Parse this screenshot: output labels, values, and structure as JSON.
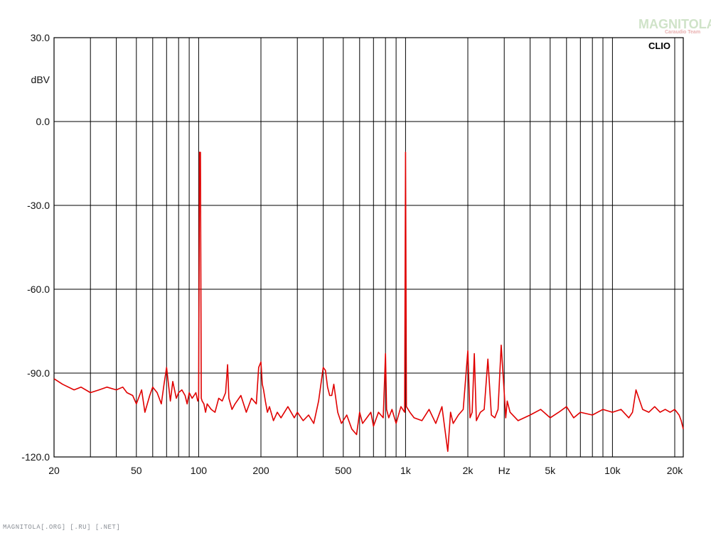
{
  "brand": {
    "name": "MAGNITOLA",
    "tagline": "Caraudio Team",
    "badge": "CLIO"
  },
  "watermark": "MAGNITOLA[.ORG] [.RU] [.NET]",
  "colors": {
    "trace": "#e00000",
    "grid": "#000000",
    "background": "#ffffff"
  },
  "chart_data": {
    "type": "line",
    "title": "",
    "xlabel": "Hz",
    "ylabel": "dBV",
    "x_scale": "log",
    "xlim": [
      20,
      22000
    ],
    "ylim": [
      -120,
      30
    ],
    "grid": true,
    "x_ticks": [
      {
        "value": 20,
        "label": "20"
      },
      {
        "value": 50,
        "label": "50"
      },
      {
        "value": 100,
        "label": "100"
      },
      {
        "value": 200,
        "label": "200"
      },
      {
        "value": 500,
        "label": "500"
      },
      {
        "value": 1000,
        "label": "1k"
      },
      {
        "value": 2000,
        "label": "2k"
      },
      {
        "value": 5000,
        "label": "5k"
      },
      {
        "value": 10000,
        "label": "10k"
      },
      {
        "value": 20000,
        "label": "20k"
      }
    ],
    "y_ticks": [
      {
        "value": 30,
        "label": "30.0"
      },
      {
        "value": 0,
        "label": "0.0"
      },
      {
        "value": -30,
        "label": "-30.0"
      },
      {
        "value": -60,
        "label": "-60.0"
      },
      {
        "value": -90,
        "label": "-90.0"
      },
      {
        "value": -120,
        "label": "-120.0"
      }
    ],
    "series": [
      {
        "x": [
          20,
          22,
          25,
          27,
          30,
          33,
          36,
          40,
          43,
          45,
          48,
          50,
          53,
          55,
          58,
          60,
          63,
          66,
          68,
          70,
          73,
          75,
          78,
          80,
          83,
          86,
          88,
          90,
          93,
          95,
          97,
          99,
          100,
          101,
          102,
          103,
          104,
          106,
          108,
          110,
          115,
          120,
          125,
          130,
          135,
          138,
          140,
          145,
          150,
          160,
          170,
          180,
          190,
          195,
          200,
          203,
          206,
          210,
          215,
          220,
          230,
          240,
          250,
          270,
          290,
          300,
          320,
          340,
          360,
          380,
          400,
          410,
          420,
          430,
          440,
          450,
          470,
          490,
          520,
          550,
          580,
          600,
          620,
          650,
          680,
          700,
          740,
          780,
          800,
          810,
          830,
          860,
          900,
          950,
          990,
          1000,
          1010,
          1050,
          1100,
          1200,
          1300,
          1400,
          1500,
          1600,
          1650,
          1700,
          1800,
          1900,
          2000,
          2050,
          2100,
          2150,
          2200,
          2300,
          2400,
          2500,
          2600,
          2700,
          2800,
          2900,
          3000,
          3050,
          3100,
          3200,
          3500,
          4000,
          4500,
          5000,
          5500,
          6000,
          6500,
          7000,
          8000,
          9000,
          10000,
          11000,
          12000,
          12500,
          13000,
          14000,
          15000,
          16000,
          17000,
          18000,
          19000,
          20000,
          20500,
          21000,
          21500,
          22000
        ],
        "y": [
          -92,
          -94,
          -96,
          -95,
          -97,
          -96,
          -95,
          -96,
          -95,
          -97,
          -98,
          -101,
          -96,
          -104,
          -98,
          -95,
          -97,
          -101,
          -94,
          -88,
          -100,
          -93,
          -99,
          -97,
          -96,
          -98,
          -101,
          -97,
          -99,
          -98,
          -97,
          -100,
          -99,
          -11,
          -11,
          -99,
          -100,
          -101,
          -104,
          -101,
          -103,
          -104,
          -99,
          -100,
          -97,
          -87,
          -99,
          -103,
          -101,
          -98,
          -104,
          -99,
          -101,
          -88,
          -86,
          -94,
          -96,
          -100,
          -104,
          -102,
          -107,
          -104,
          -106,
          -102,
          -106,
          -104,
          -107,
          -105,
          -108,
          -100,
          -88,
          -89,
          -95,
          -98,
          -98,
          -94,
          -104,
          -108,
          -105,
          -110,
          -112,
          -104,
          -108,
          -106,
          -104,
          -109,
          -104,
          -106,
          -83,
          -103,
          -106,
          -103,
          -108,
          -102,
          -104,
          -11,
          -102,
          -104,
          -106,
          -107,
          -103,
          -108,
          -102,
          -118,
          -104,
          -108,
          -105,
          -103,
          -82,
          -106,
          -104,
          -83,
          -107,
          -104,
          -103,
          -85,
          -105,
          -106,
          -103,
          -80,
          -97,
          -106,
          -100,
          -104,
          -107,
          -105,
          -103,
          -106,
          -104,
          -102,
          -106,
          -104,
          -105,
          -103,
          -104,
          -103,
          -106,
          -104,
          -96,
          -103,
          -104,
          -102,
          -104,
          -103,
          -104,
          -103,
          -104,
          -105,
          -107,
          -110
        ]
      }
    ],
    "annotations": [
      "CLIO"
    ]
  }
}
